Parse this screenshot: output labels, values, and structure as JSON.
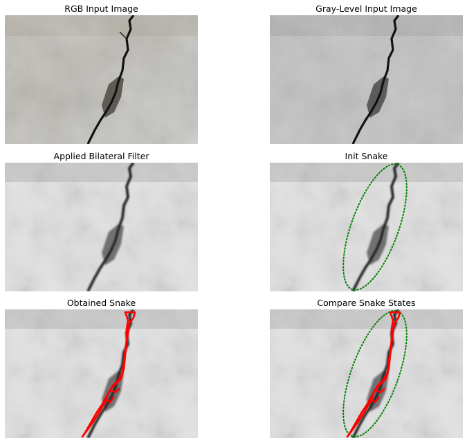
{
  "figure": {
    "panels": [
      {
        "id": "rgb",
        "title": "RGB Input Image"
      },
      {
        "id": "gray",
        "title": "Gray-Level Input Image"
      },
      {
        "id": "bilateral",
        "title": "Applied Bilateral Filter"
      },
      {
        "id": "init",
        "title": "Init Snake"
      },
      {
        "id": "obtained",
        "title": "Obtained Snake"
      },
      {
        "id": "compare",
        "title": "Compare Snake States"
      }
    ],
    "colors": {
      "init_snake": "#008000",
      "final_snake": "#ff0000",
      "crack": "#111111"
    }
  }
}
